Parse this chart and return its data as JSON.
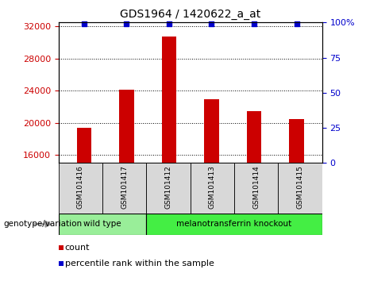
{
  "title": "GDS1964 / 1420622_a_at",
  "samples": [
    "GSM101416",
    "GSM101417",
    "GSM101412",
    "GSM101413",
    "GSM101414",
    "GSM101415"
  ],
  "counts": [
    19400,
    24100,
    30800,
    22900,
    21500,
    20500
  ],
  "percentile_ranks": [
    99,
    99,
    99,
    99,
    99,
    99
  ],
  "ylim_left": [
    15000,
    32500
  ],
  "ylim_right": [
    0,
    100
  ],
  "yticks_left": [
    16000,
    20000,
    24000,
    28000,
    32000
  ],
  "ytick_labels_left": [
    "16000",
    "20000",
    "24000",
    "28000",
    "32000"
  ],
  "yticks_right": [
    0,
    25,
    50,
    75,
    100
  ],
  "ytick_labels_right": [
    "0",
    "25",
    "50",
    "75",
    "100%"
  ],
  "bar_bottom": 15000,
  "bar_color": "#cc0000",
  "dot_color": "#0000cc",
  "grid_color": "#000000",
  "left_tick_color": "#cc0000",
  "right_tick_color": "#0000cc",
  "bar_width": 0.35,
  "groups": [
    {
      "label": "wild type",
      "n_samples": 2,
      "color": "#99ee99"
    },
    {
      "label": "melanotransferrin knockout",
      "n_samples": 4,
      "color": "#44ee44"
    }
  ],
  "legend_items": [
    {
      "label": "count",
      "color": "#cc0000"
    },
    {
      "label": "percentile rank within the sample",
      "color": "#0000cc"
    }
  ],
  "genotype_label": "genotype/variation",
  "sample_box_color": "#d8d8d8",
  "plot_bg": "#ffffff"
}
